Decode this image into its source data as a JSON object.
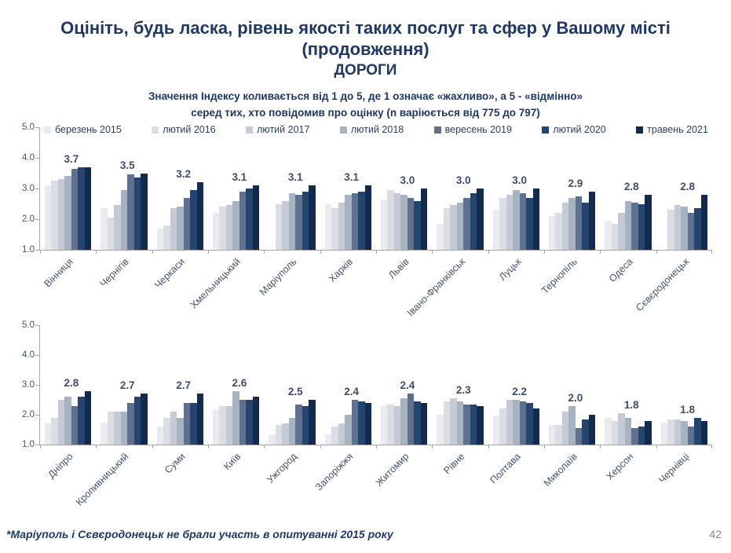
{
  "slide": {
    "title_line1": "Оцініть, будь ласка, рівень якості таких послуг та сфер у Вашому місті",
    "title_line2": "(продовження)",
    "title_line3": "ДОРОГИ",
    "subtitle_line1": "Значення Індексу коливається від 1 до 5, де 1 означає «жахливо», а 5 - «відмінно»",
    "subtitle_line2": "серед тих, хто повідомив про оцінку (n варіюється від 775 до 797)",
    "footnote": "*Маріуполь і Сєвєродонецьк не брали участь в опитуванні 2015 року",
    "page_number": "42"
  },
  "colors": {
    "title": "#1f3864",
    "axis": "#a6a6a6",
    "data_label": "#3e4e64",
    "category_label": "#44546a",
    "series": [
      "#e9ebef",
      "#dadee4",
      "#c4cbd6",
      "#a8b3c2",
      "#5f7190",
      "#24456e",
      "#13294d"
    ]
  },
  "legend": {
    "items": [
      {
        "label": "березень 2015",
        "color": "#e9ebef"
      },
      {
        "label": "лютий 2016",
        "color": "#dadee4"
      },
      {
        "label": "лютий 2017",
        "color": "#c4cbd6"
      },
      {
        "label": "лютий 2018",
        "color": "#a8b3c2"
      },
      {
        "label": "вересень 2019",
        "color": "#5f7190"
      },
      {
        "label": "лютий 2020",
        "color": "#24456e"
      },
      {
        "label": "травень 2021",
        "color": "#13294d"
      }
    ]
  },
  "chart_data": [
    {
      "type": "bar",
      "title": "ДОРОГИ (міста 1-12)",
      "ylim": [
        1.0,
        5.0
      ],
      "yticks": [
        "5.0",
        "4.0",
        "3.0",
        "2.0",
        "1.0"
      ],
      "grid": false,
      "legend_position": "top",
      "categories": [
        "Вінниця",
        "Чернігів",
        "Черкаси",
        "Хмельницький",
        "Маріуполь",
        "Харків",
        "Львів",
        "Івано-Франківськ",
        "Луцьк",
        "Тернопіль",
        "Одеса",
        "Сєвєродонецьк"
      ],
      "series": [
        {
          "name": "березень 2015",
          "values": [
            3.1,
            2.35,
            1.7,
            2.2,
            null,
            2.5,
            2.65,
            1.85,
            2.3,
            2.1,
            1.95,
            null
          ]
        },
        {
          "name": "лютий 2016",
          "values": [
            3.25,
            2.05,
            1.8,
            2.4,
            2.5,
            2.35,
            2.95,
            2.35,
            2.7,
            2.2,
            1.85,
            2.3
          ]
        },
        {
          "name": "лютий 2017",
          "values": [
            3.3,
            2.45,
            2.35,
            2.45,
            2.6,
            2.55,
            2.85,
            2.45,
            2.8,
            2.55,
            2.2,
            2.45
          ]
        },
        {
          "name": "лютий 2018",
          "values": [
            3.4,
            2.95,
            2.4,
            2.6,
            2.85,
            2.8,
            2.8,
            2.55,
            2.95,
            2.7,
            2.6,
            2.4
          ]
        },
        {
          "name": "вересень 2019",
          "values": [
            3.65,
            3.45,
            2.7,
            2.9,
            2.8,
            2.85,
            2.7,
            2.7,
            2.85,
            2.75,
            2.55,
            2.2
          ]
        },
        {
          "name": "лютий 2020",
          "values": [
            3.7,
            3.35,
            2.95,
            3.0,
            2.9,
            2.9,
            2.6,
            2.85,
            2.7,
            2.55,
            2.5,
            2.35
          ]
        },
        {
          "name": "травень 2021",
          "values": [
            3.7,
            3.5,
            3.2,
            3.1,
            3.1,
            3.1,
            3.0,
            3.0,
            3.0,
            2.9,
            2.8,
            2.8
          ]
        }
      ],
      "value_labels": [
        "3.7",
        "3.5",
        "3.2",
        "3.1",
        "3.1",
        "3.1",
        "3.0",
        "3.0",
        "3.0",
        "2.9",
        "2.8",
        "2.8"
      ]
    },
    {
      "type": "bar",
      "title": "ДОРОГИ (міста 13-24)",
      "ylim": [
        1.0,
        5.0
      ],
      "yticks": [
        "5.0",
        "4.0",
        "3.0",
        "2.0",
        "1.0"
      ],
      "grid": false,
      "legend_position": "none",
      "categories": [
        "Дніпро",
        "Кропивницький",
        "Суми",
        "Київ",
        "Ужгород",
        "Запоріжжя",
        "Житомир",
        "Рівне",
        "Полтава",
        "Миколаїв",
        "Херсон",
        "Чернівці"
      ],
      "series": [
        {
          "name": "березень 2015",
          "values": [
            1.7,
            1.7,
            1.6,
            2.15,
            1.35,
            1.35,
            2.3,
            2.0,
            1.95,
            1.65,
            1.9,
            1.75
          ]
        },
        {
          "name": "лютий 2016",
          "values": [
            1.9,
            2.1,
            1.9,
            2.3,
            1.65,
            1.6,
            2.35,
            2.45,
            2.2,
            1.65,
            1.8,
            1.85
          ]
        },
        {
          "name": "лютий 2017",
          "values": [
            2.5,
            2.1,
            2.1,
            2.3,
            1.7,
            1.7,
            2.3,
            2.55,
            2.5,
            2.1,
            2.05,
            1.85
          ]
        },
        {
          "name": "лютий 2018",
          "values": [
            2.6,
            2.1,
            1.9,
            2.8,
            1.9,
            2.0,
            2.55,
            2.45,
            2.5,
            2.3,
            1.9,
            1.8
          ]
        },
        {
          "name": "вересень 2019",
          "values": [
            2.3,
            2.4,
            2.4,
            2.5,
            2.35,
            2.5,
            2.7,
            2.35,
            2.45,
            1.55,
            1.55,
            1.6
          ]
        },
        {
          "name": "лютий 2020",
          "values": [
            2.6,
            2.6,
            2.4,
            2.5,
            2.3,
            2.45,
            2.45,
            2.35,
            2.4,
            1.85,
            1.6,
            1.9
          ]
        },
        {
          "name": "травень 2021",
          "values": [
            2.8,
            2.7,
            2.7,
            2.6,
            2.5,
            2.4,
            2.4,
            2.3,
            2.2,
            2.0,
            1.8,
            1.8
          ]
        }
      ],
      "value_labels": [
        "2.8",
        "2.7",
        "2.7",
        "2.6",
        "2.5",
        "2.4",
        "2.4",
        "2.3",
        "2.2",
        "2.0",
        "1.8",
        "1.8"
      ]
    }
  ]
}
